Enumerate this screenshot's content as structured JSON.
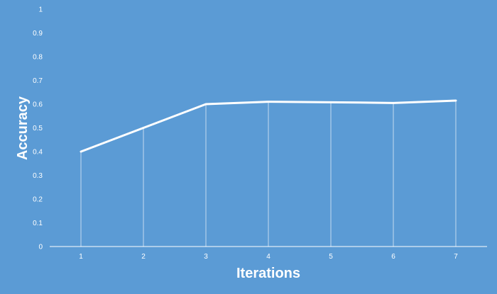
{
  "chart_data": {
    "type": "line",
    "title": "",
    "xlabel": "Iterations",
    "ylabel": "Accuracy",
    "categories": [
      "1",
      "2",
      "3",
      "4",
      "5",
      "6",
      "7"
    ],
    "series": [
      {
        "values": [
          0.4,
          0.5,
          0.6,
          0.61,
          0.608,
          0.605,
          0.615
        ]
      }
    ],
    "ylim": [
      0,
      1
    ],
    "yticks": [
      "0",
      "0.1",
      "0.2",
      "0.3",
      "0.4",
      "0.5",
      "0.6",
      "0.7",
      "0.8",
      "0.9",
      "1"
    ],
    "drop_lines": true,
    "grid": false,
    "legend": "none",
    "colors": {
      "background": "#5b9bd5",
      "line": "#ffffff",
      "text": "#ffffff"
    }
  }
}
